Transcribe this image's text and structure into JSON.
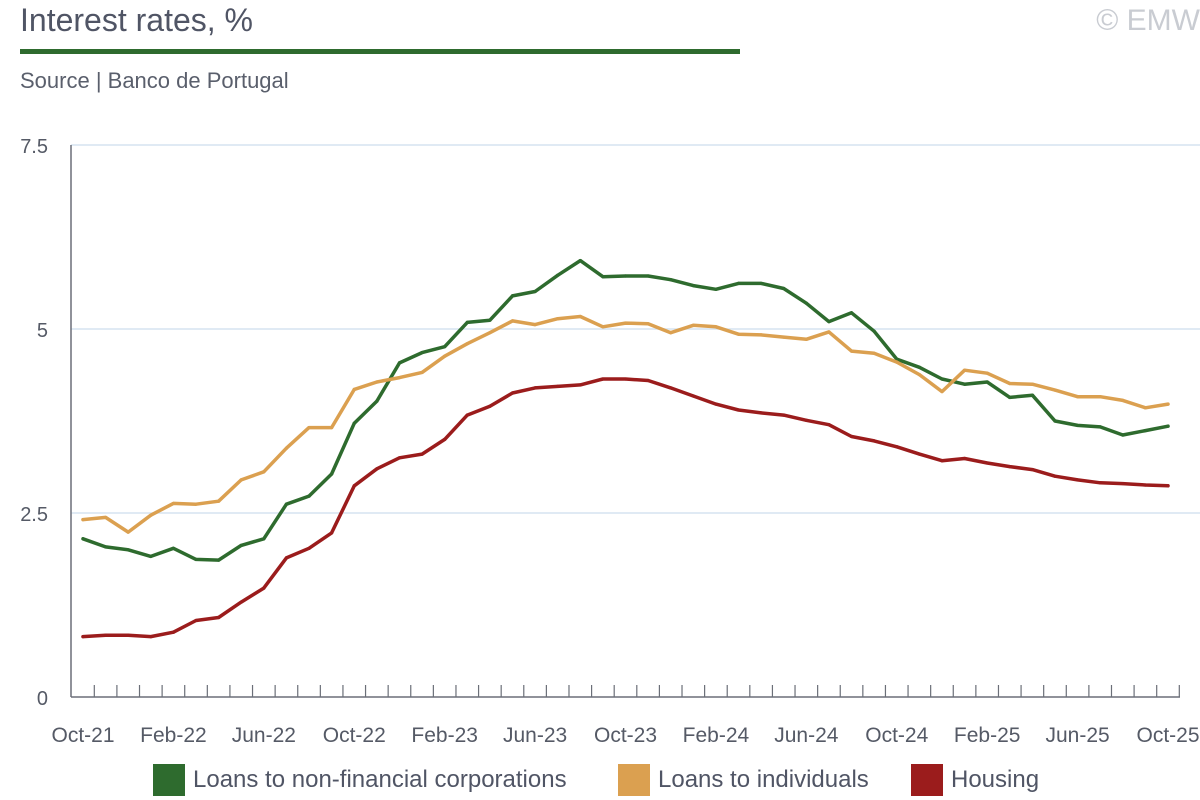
{
  "header": {
    "title": "Interest rates, %",
    "source": "Source | Banco de Portugal",
    "copyright": "© EMW"
  },
  "colors": {
    "corporations": "#2e6b2e",
    "individuals": "#dba050",
    "housing": "#9b1c1c",
    "grid": "#d6e4f0",
    "axis": "#6b6f78",
    "title_rule": "#2e6b2e"
  },
  "chart_data": {
    "type": "line",
    "title": "Interest rates, %",
    "xlabel": "",
    "ylabel": "",
    "ylim": [
      0,
      7.5
    ],
    "yticks": [
      0,
      2.5,
      5,
      7.5
    ],
    "ytick_labels": [
      "0",
      "2.5",
      "5",
      "7.5"
    ],
    "grid": true,
    "legend_position": "bottom",
    "x": [
      "Oct-21",
      "Nov-21",
      "Dec-21",
      "Jan-22",
      "Feb-22",
      "Mar-22",
      "Apr-22",
      "May-22",
      "Jun-22",
      "Jul-22",
      "Aug-22",
      "Sep-22",
      "Oct-22",
      "Nov-22",
      "Dec-22",
      "Jan-23",
      "Feb-23",
      "Mar-23",
      "Apr-23",
      "May-23",
      "Jun-23",
      "Jul-23",
      "Aug-23",
      "Sep-23",
      "Oct-23",
      "Nov-23",
      "Dec-23",
      "Jan-24",
      "Feb-24",
      "Mar-24",
      "Apr-24",
      "May-24",
      "Jun-24",
      "Jul-24",
      "Aug-24",
      "Sep-24",
      "Oct-24",
      "Nov-24",
      "Dec-24",
      "Jan-25",
      "Feb-25",
      "Mar-25",
      "Apr-25",
      "May-25",
      "Jun-25",
      "Jul-25",
      "Aug-25",
      "Sep-25",
      "Oct-25"
    ],
    "xtick_labels": [
      "Oct-21",
      "Feb-22",
      "Jun-22",
      "Oct-22",
      "Feb-23",
      "Jun-23",
      "Oct-23",
      "Feb-24",
      "Jun-24",
      "Oct-24",
      "Feb-25",
      "Jun-25",
      "Oct-25"
    ],
    "series": [
      {
        "name": "Loans to non-financial corporations",
        "color": "#2e6b2e",
        "values": [
          2.15,
          2.04,
          2.0,
          1.91,
          2.02,
          1.87,
          1.86,
          2.06,
          2.15,
          2.62,
          2.73,
          3.03,
          3.72,
          4.02,
          4.54,
          4.68,
          4.76,
          5.09,
          5.12,
          5.45,
          5.51,
          5.73,
          5.93,
          5.71,
          5.72,
          5.72,
          5.67,
          5.59,
          5.54,
          5.62,
          5.62,
          5.55,
          5.35,
          5.1,
          5.22,
          4.97,
          4.59,
          4.48,
          4.32,
          4.25,
          4.28,
          4.07,
          4.1,
          3.75,
          3.69,
          3.67,
          3.56,
          3.62,
          3.68
        ]
      },
      {
        "name": "Loans to individuals",
        "color": "#dba050",
        "values": [
          2.41,
          2.44,
          2.24,
          2.47,
          2.63,
          2.62,
          2.66,
          2.95,
          3.06,
          3.38,
          3.66,
          3.66,
          4.18,
          4.28,
          4.34,
          4.41,
          4.63,
          4.8,
          4.95,
          5.11,
          5.06,
          5.14,
          5.17,
          5.03,
          5.08,
          5.07,
          4.95,
          5.05,
          5.03,
          4.93,
          4.92,
          4.89,
          4.86,
          4.96,
          4.7,
          4.67,
          4.55,
          4.38,
          4.15,
          4.44,
          4.4,
          4.26,
          4.25,
          4.17,
          4.08,
          4.08,
          4.03,
          3.93,
          3.98
        ]
      },
      {
        "name": "Housing",
        "color": "#9b1c1c",
        "values": [
          0.82,
          0.84,
          0.84,
          0.82,
          0.88,
          1.04,
          1.08,
          1.29,
          1.48,
          1.89,
          2.02,
          2.23,
          2.87,
          3.1,
          3.25,
          3.3,
          3.5,
          3.83,
          3.95,
          4.13,
          4.2,
          4.22,
          4.24,
          4.32,
          4.32,
          4.3,
          4.2,
          4.09,
          3.98,
          3.9,
          3.86,
          3.83,
          3.76,
          3.7,
          3.54,
          3.48,
          3.4,
          3.3,
          3.21,
          3.24,
          3.18,
          3.13,
          3.09,
          3.0,
          2.95,
          2.91,
          2.9,
          2.88,
          2.87
        ]
      }
    ]
  }
}
